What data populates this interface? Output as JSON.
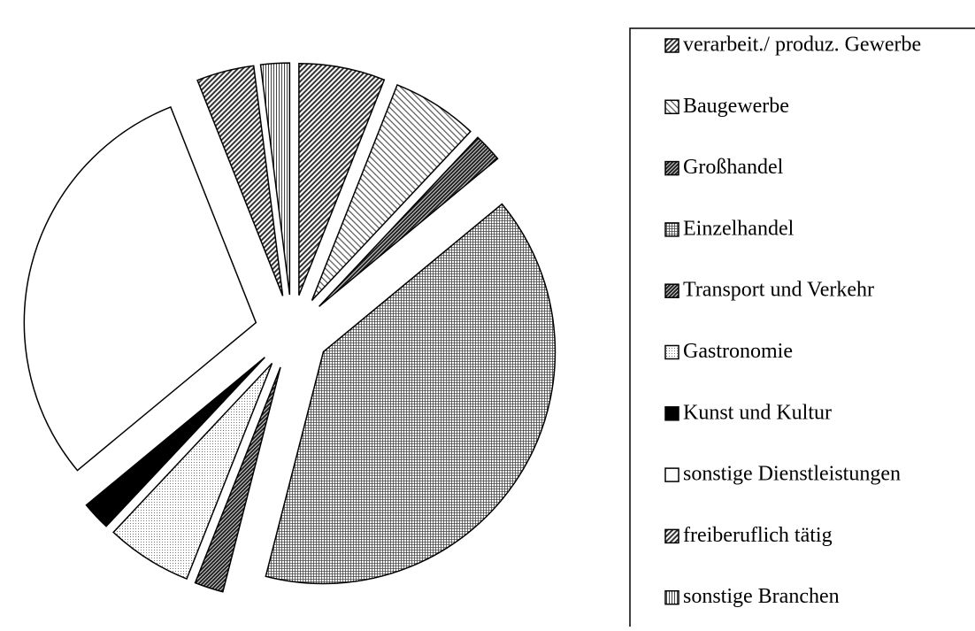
{
  "chart_data": {
    "type": "pie",
    "categories": [
      "verarbeit./ produz. Gewerbe",
      "Baugewerbe",
      "Großhandel",
      "Einzelhandel",
      "Transport und Verkehr",
      "Gastronomie",
      "Kunst und Kultur",
      "sonstige Dienstleistungen",
      "freiberuflich tätig",
      "sonstige Branchen"
    ],
    "values": [
      6,
      6,
      2,
      40,
      2,
      6,
      2,
      30,
      4,
      2
    ],
    "patterns": [
      "diagonal-dense",
      "diagonal-light",
      "diagonal-dark",
      "grid",
      "diagonal-dark",
      "dots",
      "solid-black",
      "solid-white",
      "diagonal-dense",
      "vertical"
    ],
    "legend": "right"
  }
}
